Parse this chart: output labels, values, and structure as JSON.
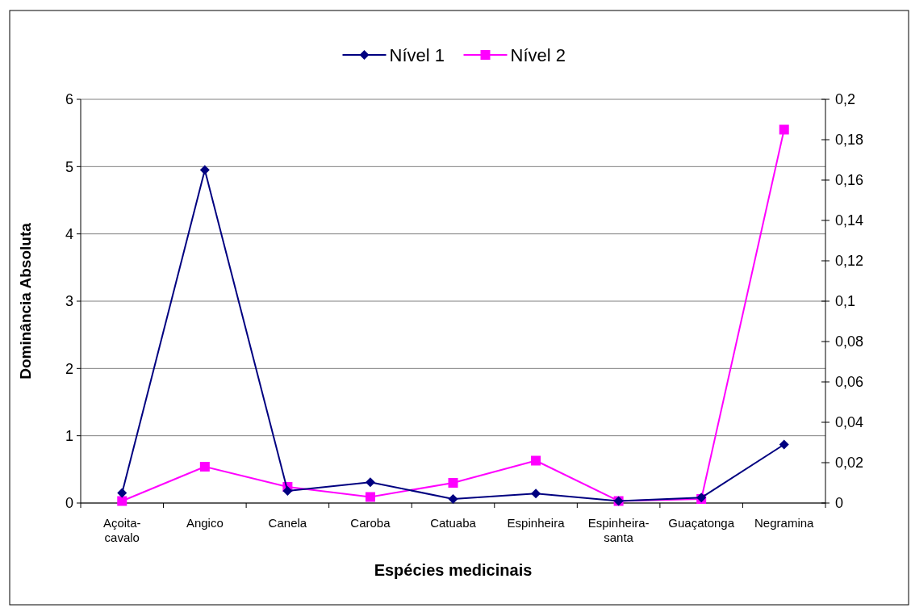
{
  "chart_data": {
    "type": "line",
    "xlabel": "Espécies medicinais",
    "ylabel": "Dominância Absoluta",
    "categories": [
      "Açoita-\ncavalo",
      "Angico",
      "Canela",
      "Caroba",
      "Catuaba",
      "Espinheira",
      "Espinheira-\nsanta",
      "Guaçatonga",
      "Negramina"
    ],
    "series": [
      {
        "name": "Nível 1",
        "color": "#000080",
        "marker": "diamond",
        "values": [
          0.15,
          4.95,
          0.18,
          0.31,
          0.06,
          0.14,
          0.03,
          0.08,
          0.87
        ]
      },
      {
        "name": "Nível 2",
        "color": "#ff00ff",
        "marker": "square",
        "axis": "y2",
        "values": [
          0.001,
          0.018,
          0.008,
          0.003,
          0.01,
          0.021,
          0.001,
          0.002,
          0.185
        ]
      }
    ],
    "ylim": [
      0,
      6
    ],
    "yticks": [
      0,
      1,
      2,
      3,
      4,
      5,
      6
    ],
    "y2lim": [
      0,
      0.2
    ],
    "y2ticks": [
      0,
      {
        "value": 0.02,
        "label": "0,02"
      },
      {
        "value": 0.04,
        "label": "0,04"
      },
      {
        "value": 0.06,
        "label": "0,06"
      },
      {
        "value": 0.08,
        "label": "0,08"
      },
      {
        "value": 0.1,
        "label": "0,1"
      },
      {
        "value": 0.12,
        "label": "0,12"
      },
      {
        "value": 0.14,
        "label": "0,14"
      },
      {
        "value": 0.16,
        "label": "0,16"
      },
      {
        "value": 0.18,
        "label": "0,18"
      },
      {
        "value": 0.2,
        "label": "0,2"
      }
    ],
    "grid": "y",
    "legend": "top"
  }
}
